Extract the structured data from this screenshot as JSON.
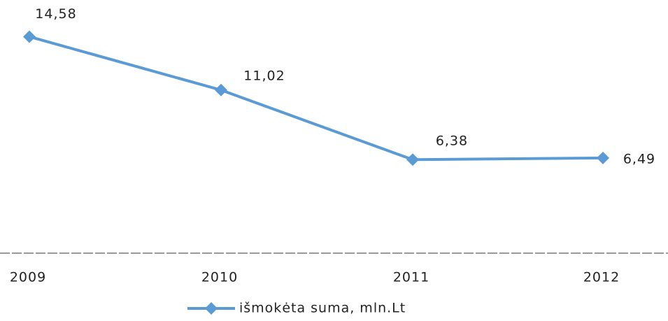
{
  "chart_data": {
    "type": "line",
    "categories": [
      "2009",
      "2010",
      "2011",
      "2012"
    ],
    "series": [
      {
        "name": "išmokėta suma, mln.Lt",
        "color": "#5b9bd5",
        "values": [
          14.58,
          11.02,
          6.38,
          6.49
        ],
        "value_labels": [
          "14,58",
          "11,02",
          "6,38",
          "6,49"
        ]
      }
    ],
    "ylim": [
      0,
      16
    ]
  }
}
